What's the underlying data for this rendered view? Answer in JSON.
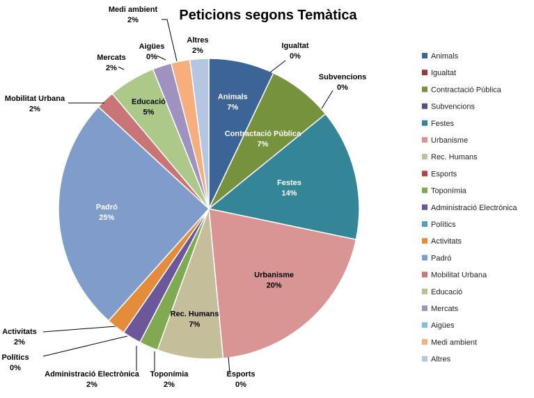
{
  "chart_data": {
    "type": "pie",
    "title": "Peticions segons Temàtica",
    "legend_position": "right",
    "slices": [
      {
        "label": "Animals",
        "value": 7,
        "value_label": "7%",
        "color": "#3C6497"
      },
      {
        "label": "Igualtat",
        "value": 0,
        "value_label": "0%",
        "color": "#96393A"
      },
      {
        "label": "Contractació Pública",
        "value": 7,
        "value_label": "7%",
        "color": "#77923D"
      },
      {
        "label": "Subvencions",
        "value": 0,
        "value_label": "0%",
        "color": "#5E4B7E"
      },
      {
        "label": "Festes",
        "value": 14,
        "value_label": "14%",
        "color": "#348596"
      },
      {
        "label": "Urbanisme",
        "value": 20,
        "value_label": "20%",
        "color": "#D99594"
      },
      {
        "label": "Rec. Humans",
        "value": 7,
        "value_label": "7%",
        "color": "#C4BE9A"
      },
      {
        "label": "Esports",
        "value": 0,
        "value_label": "0%",
        "color": "#B2454A"
      },
      {
        "label": "Toponímia",
        "value": 2,
        "value_label": "2%",
        "color": "#7FAA52"
      },
      {
        "label": "Administració Electrònica",
        "value": 2,
        "value_label": "2%",
        "color": "#6B5799"
      },
      {
        "label": "Polítics",
        "value": 0,
        "value_label": "0%",
        "color": "#4E9FC0"
      },
      {
        "label": "Activitats",
        "value": 2,
        "value_label": "2%",
        "color": "#E38D3A"
      },
      {
        "label": "Padró",
        "value": 25,
        "value_label": "25%",
        "color": "#7F9CCA"
      },
      {
        "label": "Mobilitat Urbana",
        "value": 2,
        "value_label": "2%",
        "color": "#C97575"
      },
      {
        "label": "Educació",
        "value": 5,
        "value_label": "5%",
        "color": "#ADC98A"
      },
      {
        "label": "Mercats",
        "value": 2,
        "value_label": "2%",
        "color": "#9F91C0"
      },
      {
        "label": "Aigües",
        "value": 0,
        "value_label": "0%",
        "color": "#7DC3DD"
      },
      {
        "label": "Medi ambient",
        "value": 2,
        "value_label": "2%",
        "color": "#F6AE7C"
      },
      {
        "label": "Altres",
        "value": 2,
        "value_label": "2%",
        "color": "#B5C6E2"
      }
    ]
  }
}
